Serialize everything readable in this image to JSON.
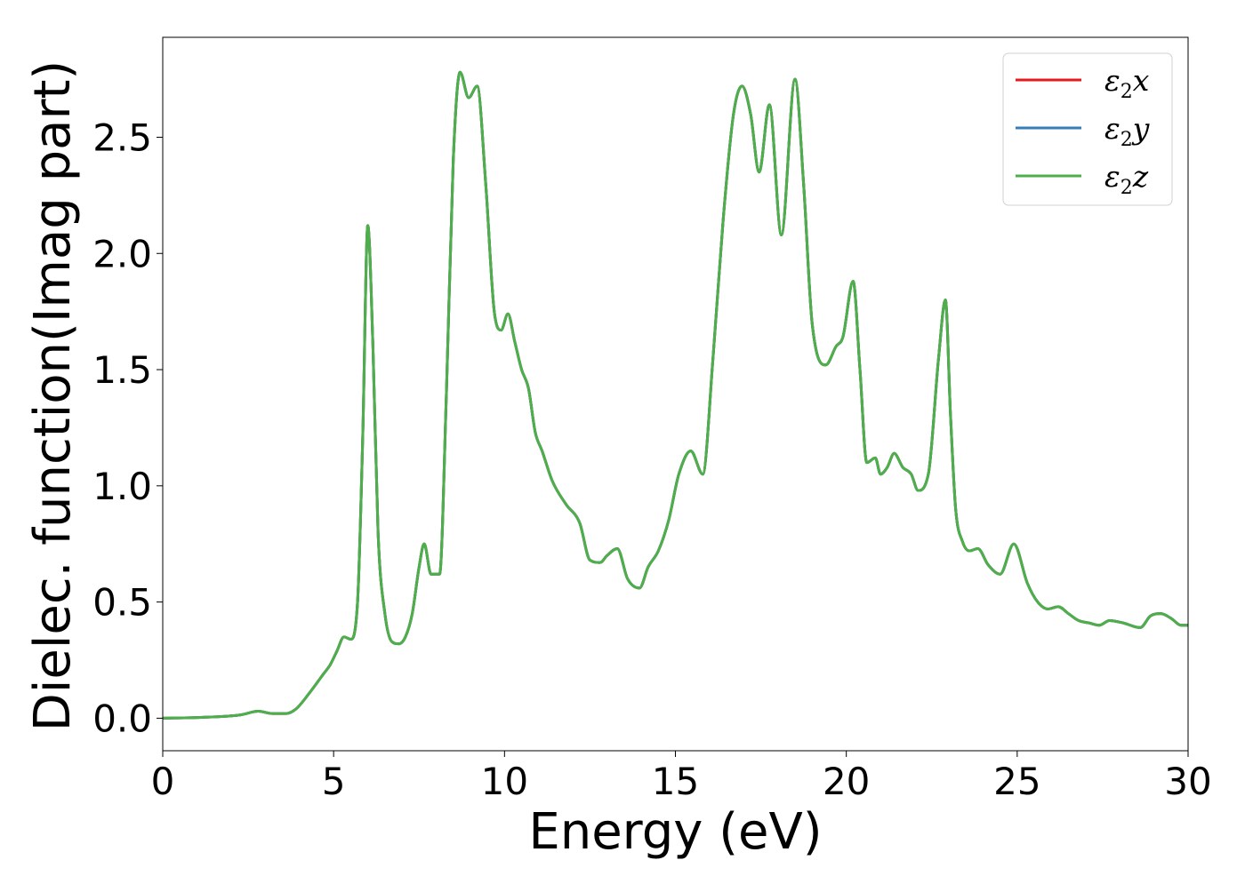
{
  "chart_data": {
    "type": "line",
    "xlabel": "Energy (eV)",
    "ylabel": "Dielec. function(Imag part)",
    "xlim": [
      0,
      30
    ],
    "ylim": [
      -0.14,
      2.93
    ],
    "xticks": [
      0,
      5,
      10,
      15,
      20,
      25,
      30
    ],
    "yticks": [
      0.0,
      0.5,
      1.0,
      1.5,
      2.0,
      2.5
    ],
    "xtick_labels": [
      "0",
      "5",
      "10",
      "15",
      "20",
      "25",
      "30"
    ],
    "ytick_labels": [
      "0.0",
      "0.5",
      "1.0",
      "1.5",
      "2.0",
      "2.5"
    ],
    "grid": false,
    "legend": {
      "placement": "top-right",
      "entries": [
        {
          "symbol": "ε",
          "sub": "2",
          "suffix": "x",
          "color": "#e41a1c"
        },
        {
          "symbol": "ε",
          "sub": "2",
          "suffix": "y",
          "color": "#377eb8"
        },
        {
          "symbol": "ε",
          "sub": "2",
          "suffix": "z",
          "color": "#4daf4a"
        }
      ]
    },
    "x": [
      0.0,
      1.0,
      2.0,
      2.3,
      2.8,
      3.2,
      3.6,
      3.9,
      4.3,
      4.7,
      4.9,
      5.1,
      5.3,
      5.5,
      5.7,
      5.85,
      6.0,
      6.15,
      6.3,
      6.5,
      6.7,
      6.9,
      7.1,
      7.3,
      7.5,
      7.65,
      7.85,
      8.1,
      8.3,
      8.5,
      8.7,
      8.95,
      9.2,
      9.45,
      9.7,
      9.9,
      10.1,
      10.3,
      10.5,
      10.7,
      10.9,
      11.1,
      11.4,
      11.8,
      12.2,
      12.5,
      12.8,
      13.0,
      13.3,
      13.6,
      13.95,
      14.2,
      14.5,
      14.8,
      15.1,
      15.45,
      15.8,
      16.1,
      16.4,
      16.7,
      16.95,
      17.2,
      17.45,
      17.75,
      18.1,
      18.5,
      18.75,
      19.0,
      19.4,
      19.7,
      19.9,
      20.2,
      20.4,
      20.6,
      20.85,
      21.0,
      21.2,
      21.4,
      21.65,
      21.9,
      22.1,
      22.4,
      22.7,
      22.9,
      23.05,
      23.2,
      23.4,
      23.6,
      23.85,
      24.15,
      24.5,
      24.9,
      25.3,
      25.6,
      25.9,
      26.2,
      26.5,
      26.8,
      27.1,
      27.4,
      27.7,
      28.1,
      28.6,
      28.9,
      29.2,
      29.5,
      29.8,
      30.0
    ],
    "series": [
      {
        "name": "ε2x",
        "color": "#e41a1c",
        "values": [
          0.0,
          0.003,
          0.01,
          0.015,
          0.03,
          0.02,
          0.02,
          0.04,
          0.11,
          0.19,
          0.23,
          0.29,
          0.35,
          0.34,
          0.5,
          1.2,
          2.12,
          1.6,
          0.8,
          0.45,
          0.33,
          0.32,
          0.35,
          0.45,
          0.65,
          0.75,
          0.62,
          0.62,
          1.4,
          2.4,
          2.78,
          2.67,
          2.72,
          2.3,
          1.75,
          1.67,
          1.74,
          1.62,
          1.5,
          1.42,
          1.23,
          1.15,
          1.02,
          0.92,
          0.84,
          0.68,
          0.67,
          0.7,
          0.73,
          0.6,
          0.56,
          0.65,
          0.72,
          0.85,
          1.05,
          1.15,
          1.05,
          1.55,
          2.15,
          2.6,
          2.72,
          2.6,
          2.35,
          2.64,
          2.08,
          2.75,
          2.3,
          1.7,
          1.52,
          1.6,
          1.64,
          1.88,
          1.5,
          1.1,
          1.12,
          1.05,
          1.08,
          1.14,
          1.08,
          1.05,
          0.98,
          1.05,
          1.55,
          1.8,
          1.3,
          0.9,
          0.76,
          0.72,
          0.73,
          0.66,
          0.62,
          0.75,
          0.58,
          0.5,
          0.47,
          0.48,
          0.45,
          0.42,
          0.41,
          0.4,
          0.42,
          0.41,
          0.39,
          0.44,
          0.45,
          0.43,
          0.4,
          0.4
        ]
      },
      {
        "name": "ε2y",
        "color": "#377eb8",
        "values": [
          0.0,
          0.003,
          0.01,
          0.015,
          0.03,
          0.02,
          0.02,
          0.04,
          0.11,
          0.19,
          0.23,
          0.29,
          0.35,
          0.34,
          0.5,
          1.2,
          2.12,
          1.6,
          0.8,
          0.45,
          0.33,
          0.32,
          0.35,
          0.45,
          0.65,
          0.75,
          0.62,
          0.62,
          1.4,
          2.4,
          2.78,
          2.67,
          2.72,
          2.3,
          1.75,
          1.67,
          1.74,
          1.62,
          1.5,
          1.42,
          1.23,
          1.15,
          1.02,
          0.92,
          0.84,
          0.68,
          0.67,
          0.7,
          0.73,
          0.6,
          0.56,
          0.65,
          0.72,
          0.85,
          1.05,
          1.15,
          1.05,
          1.55,
          2.15,
          2.6,
          2.72,
          2.6,
          2.35,
          2.64,
          2.08,
          2.75,
          2.3,
          1.7,
          1.52,
          1.6,
          1.64,
          1.88,
          1.5,
          1.1,
          1.12,
          1.05,
          1.08,
          1.14,
          1.08,
          1.05,
          0.98,
          1.05,
          1.55,
          1.8,
          1.3,
          0.9,
          0.76,
          0.72,
          0.73,
          0.66,
          0.62,
          0.75,
          0.58,
          0.5,
          0.47,
          0.48,
          0.45,
          0.42,
          0.41,
          0.4,
          0.42,
          0.41,
          0.39,
          0.44,
          0.45,
          0.43,
          0.4,
          0.4
        ]
      },
      {
        "name": "ε2z",
        "color": "#4daf4a",
        "values": [
          0.0,
          0.003,
          0.01,
          0.015,
          0.03,
          0.02,
          0.02,
          0.04,
          0.11,
          0.19,
          0.23,
          0.29,
          0.35,
          0.34,
          0.5,
          1.2,
          2.12,
          1.6,
          0.8,
          0.45,
          0.33,
          0.32,
          0.35,
          0.45,
          0.65,
          0.75,
          0.62,
          0.62,
          1.4,
          2.4,
          2.78,
          2.67,
          2.72,
          2.3,
          1.75,
          1.67,
          1.74,
          1.62,
          1.5,
          1.42,
          1.23,
          1.15,
          1.02,
          0.92,
          0.84,
          0.68,
          0.67,
          0.7,
          0.73,
          0.6,
          0.56,
          0.65,
          0.72,
          0.85,
          1.05,
          1.15,
          1.05,
          1.55,
          2.15,
          2.6,
          2.72,
          2.6,
          2.35,
          2.64,
          2.08,
          2.75,
          2.3,
          1.7,
          1.52,
          1.6,
          1.64,
          1.88,
          1.5,
          1.1,
          1.12,
          1.05,
          1.08,
          1.14,
          1.08,
          1.05,
          0.98,
          1.05,
          1.55,
          1.8,
          1.3,
          0.9,
          0.76,
          0.72,
          0.73,
          0.66,
          0.62,
          0.75,
          0.58,
          0.5,
          0.47,
          0.48,
          0.45,
          0.42,
          0.41,
          0.4,
          0.42,
          0.41,
          0.39,
          0.44,
          0.45,
          0.43,
          0.4,
          0.4
        ]
      }
    ]
  }
}
